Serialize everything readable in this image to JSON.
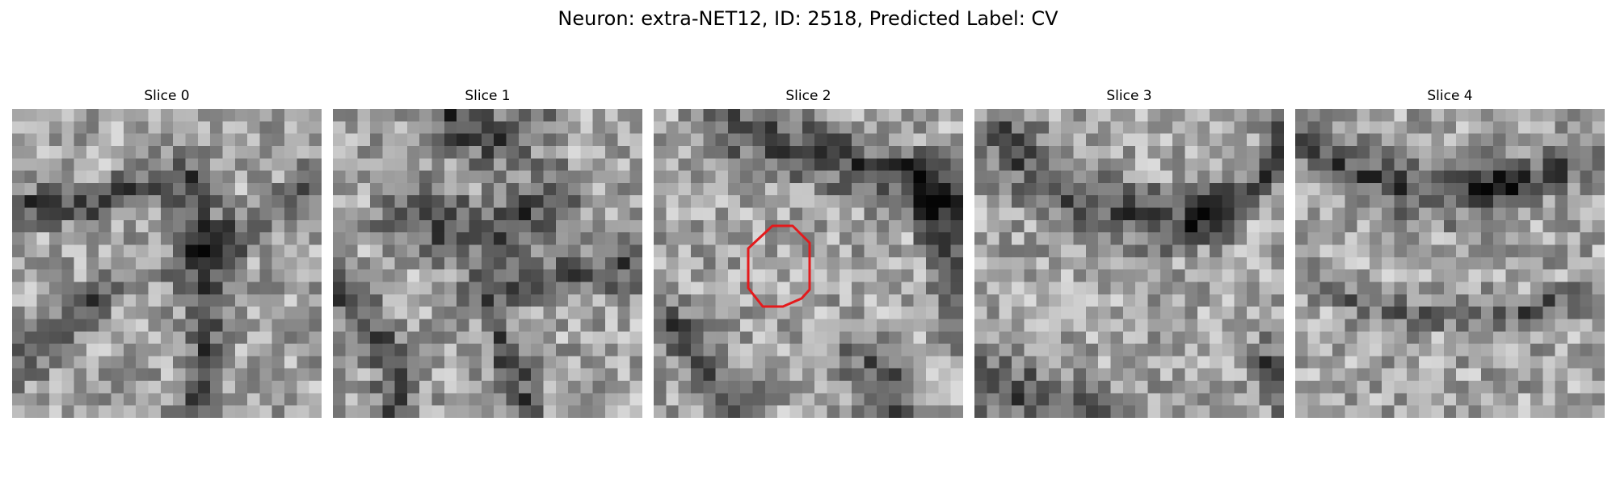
{
  "figure": {
    "title": "Neuron: extra-NET12, ID: 2518, Predicted Label: CV"
  },
  "colormap": "gray",
  "grid_size": 25,
  "roi_color": "#e41a1c",
  "panels": [
    {
      "title": "Slice 0",
      "seed": 11,
      "has_roi": false
    },
    {
      "title": "Slice 1",
      "seed": 23,
      "has_roi": false
    },
    {
      "title": "Slice 2",
      "seed": 37,
      "has_roi": true
    },
    {
      "title": "Slice 3",
      "seed": 41,
      "has_roi": false
    },
    {
      "title": "Slice 4",
      "seed": 59,
      "has_roi": false
    }
  ]
}
